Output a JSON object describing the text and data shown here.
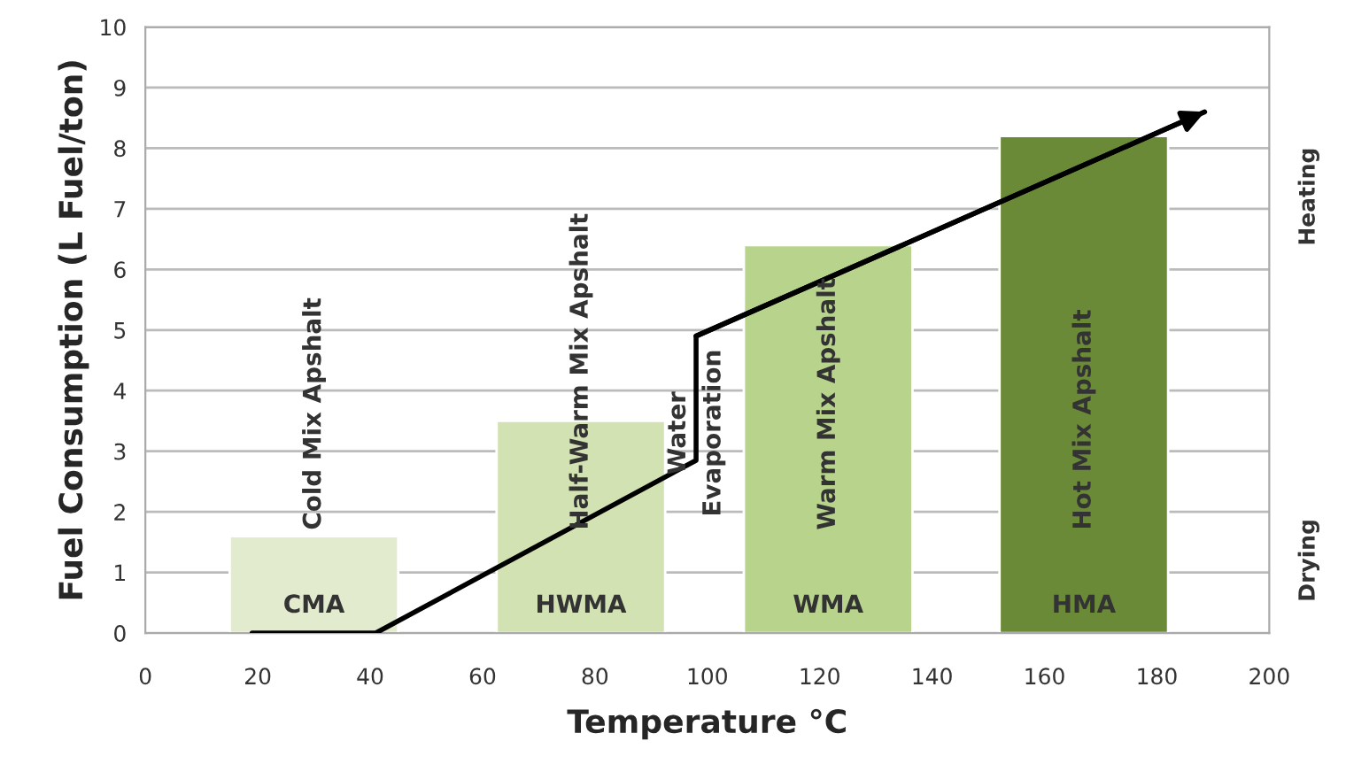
{
  "chart_data": {
    "type": "bar",
    "xlabel": "Temperature °C",
    "ylabel": "Fuel Consumption (L Fuel/ton)",
    "xlim": [
      0,
      200
    ],
    "xticks": [
      0,
      20,
      40,
      60,
      80,
      100,
      120,
      140,
      160,
      180,
      200
    ],
    "ylim": [
      0,
      10
    ],
    "yticks": [
      0,
      1,
      2,
      3,
      4,
      5,
      6,
      7,
      8,
      9,
      10
    ],
    "grid": "y",
    "series": [
      {
        "name": "Cold Mix Apshalt",
        "color": "#e3ebcf",
        "x": [
          30
        ],
        "values": [
          1.6
        ],
        "value_labels": [
          "CMA"
        ]
      },
      {
        "name": "Half-Warm Mix Apshalt",
        "color": "#d3e2b3",
        "x": [
          77.5
        ],
        "values": [
          3.5
        ],
        "value_labels": [
          "HWMA"
        ]
      },
      {
        "name": "Warm Mix Apshalt",
        "color": "#b8d38b",
        "x": [
          121.5
        ],
        "values": [
          6.4
        ],
        "value_labels": [
          "WMA"
        ]
      },
      {
        "name": "Hot Mix Apshalt",
        "color": "#6b8a38",
        "x": [
          167
        ],
        "values": [
          8.2
        ],
        "value_labels": [
          "HMA"
        ]
      },
      {
        "type": "line",
        "color": "#000000",
        "x": [
          19,
          41,
          98,
          98,
          188.5
        ],
        "values": [
          0,
          0,
          2.85,
          4.9,
          8.6
        ]
      }
    ],
    "annotations": [
      {
        "text": "Water\nEvaporation",
        "x": 98,
        "y": 3.3
      },
      "Heating",
      "Drying"
    ]
  }
}
